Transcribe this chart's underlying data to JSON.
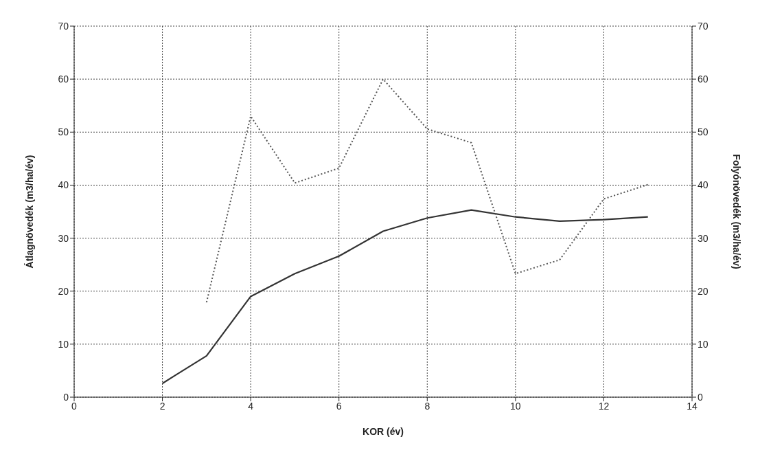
{
  "chart_data": {
    "type": "line",
    "xlabel": "KOR (év)",
    "ylabel": "Átlagnövedék (m3/ha/év)",
    "y2label": "Folyónövedék (m3/ha/év)",
    "xlim": [
      0,
      14
    ],
    "xticks": [
      0,
      2,
      4,
      6,
      8,
      10,
      12,
      14
    ],
    "ylim": [
      0,
      70
    ],
    "yticks": [
      0,
      10,
      20,
      30,
      40,
      50,
      60,
      70
    ],
    "y2lim": [
      0,
      70
    ],
    "y2ticks": [
      0,
      10,
      20,
      30,
      40,
      50,
      60,
      70
    ],
    "grid": true,
    "marker": "none",
    "series": [
      {
        "color": "#333333",
        "line_style": "solid",
        "x": [
          2,
          3,
          4,
          5,
          6,
          7,
          8,
          9,
          10,
          11,
          12,
          13
        ],
        "values": [
          2.6,
          7.8,
          19,
          23.3,
          26.6,
          31.3,
          33.8,
          35.3,
          34,
          33.2,
          33.5,
          34
        ]
      },
      {
        "color": "#555555",
        "line_style": "dotted",
        "axis": "y2",
        "x": [
          3,
          4,
          5,
          6,
          7,
          8,
          9,
          10,
          11,
          12,
          13
        ],
        "values": [
          17.9,
          53,
          40.4,
          43.2,
          60,
          50.6,
          48,
          23.3,
          25.9,
          37.4,
          40.1
        ]
      }
    ]
  }
}
